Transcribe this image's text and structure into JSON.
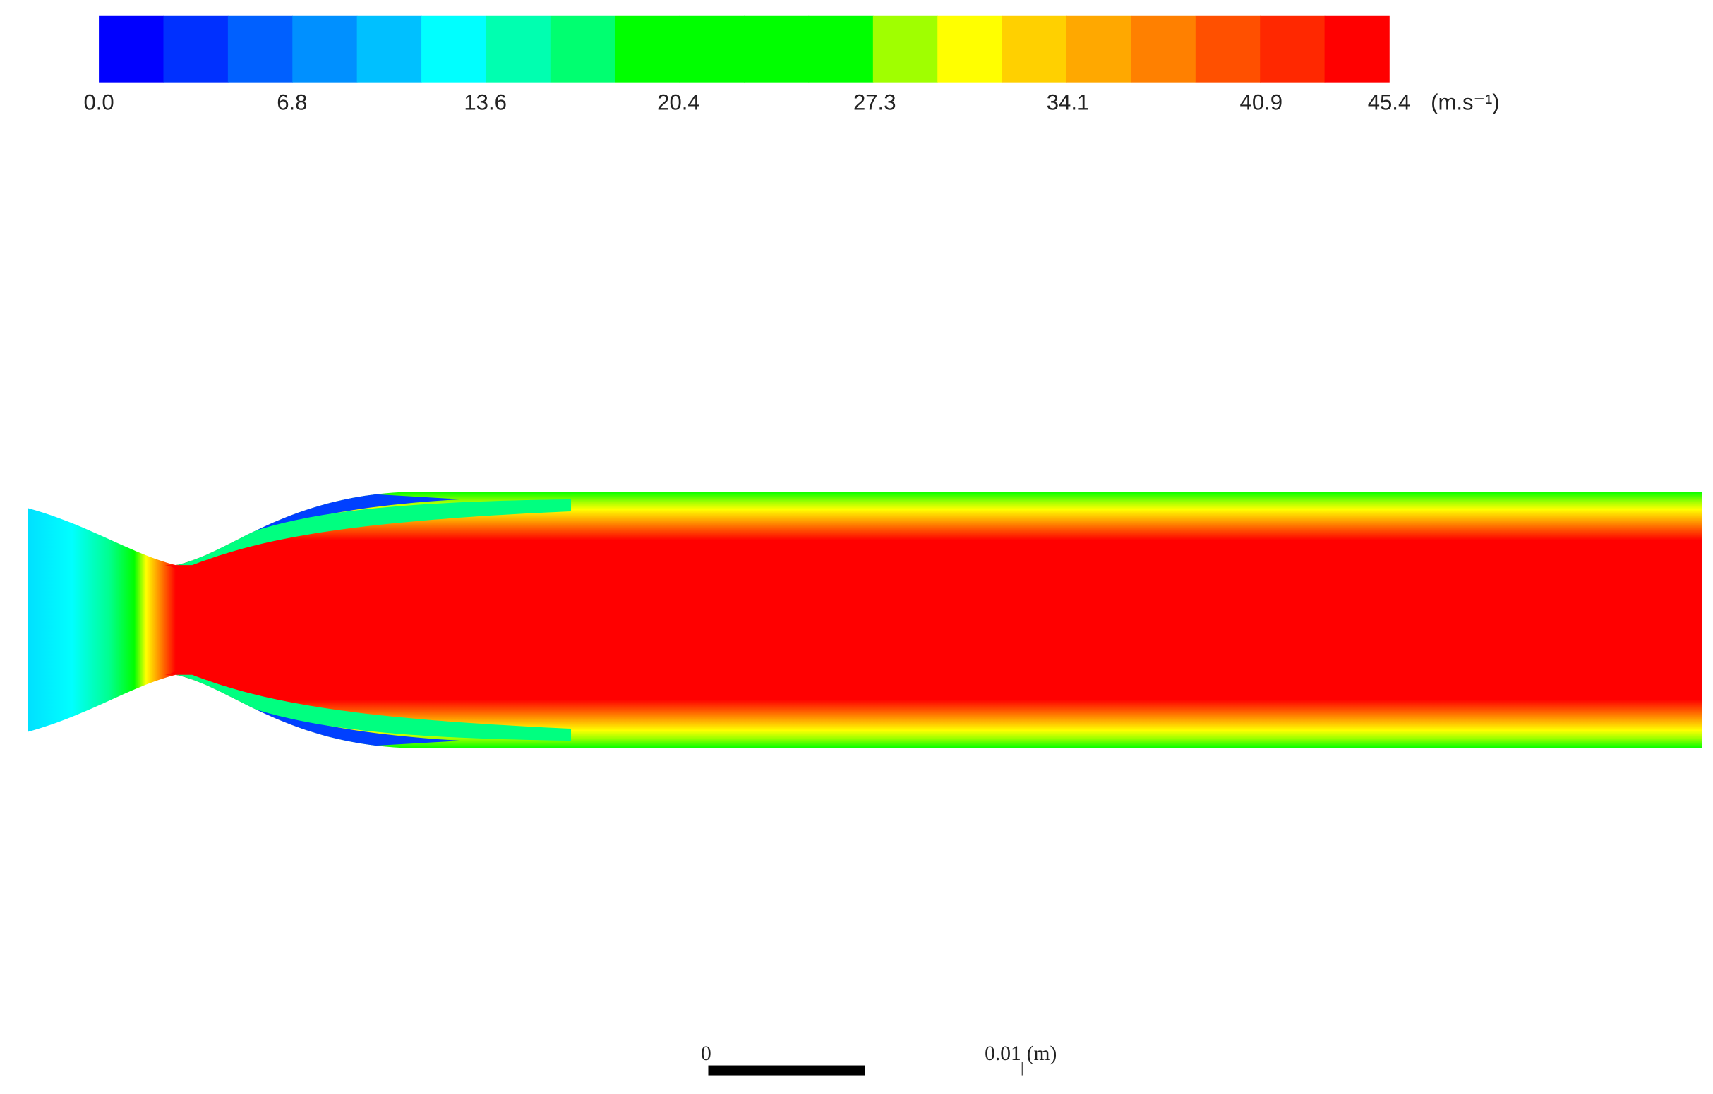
{
  "colorbar": {
    "lim": [
      0,
      45.4
    ],
    "ticks": [
      {
        "value": 0,
        "label": "0.0"
      },
      6.8,
      13.6,
      20.4,
      27.3,
      34.1,
      40.9,
      45.4
    ],
    "unit": "(m.s⁻¹)",
    "colors": [
      "#0000ff",
      "#0030ff",
      "#0060ff",
      "#0090ff",
      "#00c0ff",
      "#00ffff",
      "#00ffb0",
      "#00ff70",
      "#00ff00",
      "#00ff00",
      "#00ff00",
      "#00ff00",
      "#a0ff00",
      "#ffff00",
      "#ffd000",
      "#ffa800",
      "#ff8000",
      "#ff5000",
      "#ff2800",
      "#ff0000"
    ]
  },
  "scale_bar": {
    "start": "0",
    "end": "0.01",
    "unit": "(m)"
  }
}
